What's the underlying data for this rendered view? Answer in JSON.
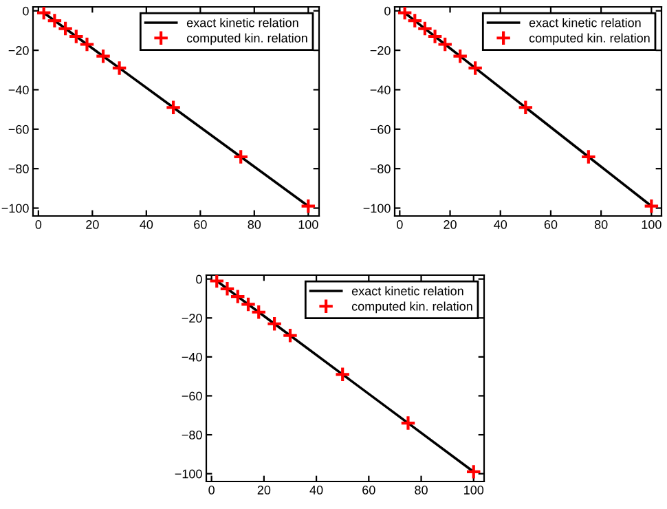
{
  "chart_data": [
    {
      "type": "line",
      "x": [
        2,
        6,
        10,
        14,
        18,
        24,
        30,
        50,
        75,
        100
      ],
      "series": [
        {
          "name": "exact kinetic relation",
          "color": "#000000",
          "values": [
            -1,
            -5,
            -9,
            -13,
            -17,
            -23,
            -29,
            -49,
            -74,
            -99
          ]
        },
        {
          "name": "computed kin. relation",
          "type": "scatter",
          "marker": "cross",
          "color": "#ff0000",
          "values": [
            -1,
            -5,
            -9,
            -13,
            -17,
            -23,
            -29,
            -49,
            -74,
            -99
          ]
        }
      ],
      "xlim": [
        -2,
        104
      ],
      "ylim": [
        -104,
        2
      ],
      "xticks": [
        0,
        20,
        40,
        60,
        80,
        100
      ],
      "yticks": [
        -100,
        -80,
        -60,
        -40,
        -20,
        0
      ],
      "legend": "top right",
      "grid": false
    },
    {
      "type": "line",
      "x": [
        2,
        6,
        10,
        14,
        18,
        24,
        30,
        50,
        75,
        100
      ],
      "series": [
        {
          "name": "exact kinetic relation",
          "color": "#000000",
          "values": [
            -1,
            -5,
            -9,
            -13,
            -17,
            -23,
            -29,
            -49,
            -74,
            -99
          ]
        },
        {
          "name": "computed kin. relation",
          "type": "scatter",
          "marker": "cross",
          "color": "#ff0000",
          "values": [
            -1,
            -5,
            -9,
            -13,
            -17,
            -23,
            -29,
            -49,
            -74,
            -99
          ]
        }
      ],
      "xlim": [
        -2,
        104
      ],
      "ylim": [
        -104,
        2
      ],
      "xticks": [
        0,
        20,
        40,
        60,
        80,
        100
      ],
      "yticks": [
        -100,
        -80,
        -60,
        -40,
        -20,
        0
      ],
      "legend": "top right",
      "grid": false
    },
    {
      "type": "line",
      "x": [
        2,
        6,
        10,
        14,
        18,
        24,
        30,
        50,
        75,
        100
      ],
      "series": [
        {
          "name": "exact kinetic relation",
          "color": "#000000",
          "values": [
            -1,
            -5,
            -9,
            -13,
            -17,
            -23,
            -29,
            -49,
            -74,
            -99
          ]
        },
        {
          "name": "computed kin. relation",
          "type": "scatter",
          "marker": "cross",
          "color": "#ff0000",
          "values": [
            -1,
            -5,
            -9,
            -13,
            -17,
            -23,
            -29,
            -49,
            -74,
            -99
          ]
        }
      ],
      "xlim": [
        -2,
        104
      ],
      "ylim": [
        -104,
        2
      ],
      "xticks": [
        0,
        20,
        40,
        60,
        80,
        100
      ],
      "yticks": [
        -100,
        -80,
        -60,
        -40,
        -20,
        0
      ],
      "legend": "top right",
      "grid": false
    }
  ]
}
